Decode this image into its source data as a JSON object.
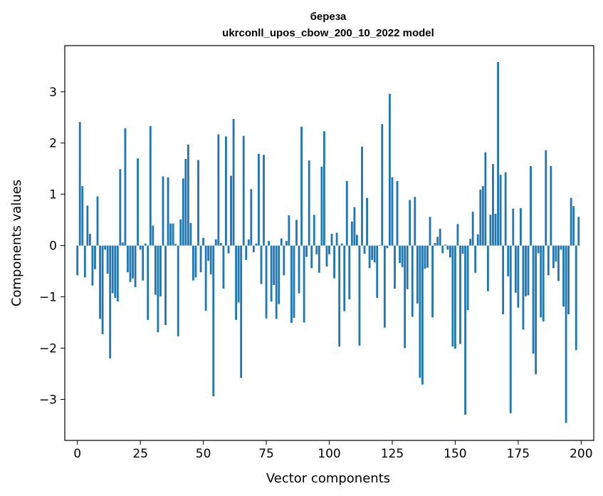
{
  "chart_data": {
    "type": "bar",
    "title": "береза",
    "subtitle": "ukrconll_upos_cbow_200_10_2022 model",
    "xlabel": "Vector components",
    "ylabel": "Components values",
    "xlim": [
      -5,
      205
    ],
    "ylim": [
      -3.8,
      3.9
    ],
    "xticks": [
      0,
      25,
      50,
      75,
      100,
      125,
      150,
      175,
      200
    ],
    "xtick_labels": [
      "0",
      "25",
      "50",
      "75",
      "100",
      "125",
      "150",
      "175",
      "200"
    ],
    "yticks": [
      -3,
      -2,
      -1,
      0,
      1,
      2,
      3
    ],
    "ytick_labels": [
      "−3",
      "−2",
      "−1",
      "0",
      "1",
      "2",
      "3"
    ],
    "bar_color": "#1f77b4",
    "bar_width": 0.8,
    "values": [
      -0.58,
      2.41,
      1.16,
      -0.62,
      0.78,
      0.23,
      -0.78,
      -0.46,
      0.96,
      -1.43,
      -1.73,
      -0.08,
      -0.55,
      -2.2,
      -0.93,
      -1.02,
      -1.09,
      1.49,
      0.06,
      2.29,
      -0.52,
      -0.71,
      -0.64,
      -0.81,
      1.7,
      -0.08,
      -0.68,
      0.04,
      -1.45,
      2.33,
      0.39,
      -0.96,
      -1.69,
      -0.99,
      1.35,
      -1.55,
      1.33,
      0.43,
      0.43,
      0.03,
      -1.77,
      0.51,
      1.31,
      1.69,
      1.97,
      0.44,
      -0.68,
      -0.62,
      1.67,
      -0.52,
      0.15,
      -1.27,
      -0.3,
      -0.56,
      -2.94,
      0.12,
      2.17,
      0.05,
      -0.84,
      2.13,
      -0.15,
      1.36,
      2.47,
      -1.45,
      -1.11,
      -2.58,
      2.14,
      -0.28,
      0.12,
      1.1,
      -0.13,
      0.04,
      1.79,
      -0.75,
      1.77,
      -1.42,
      0.09,
      -1.09,
      -0.77,
      -1.43,
      -1.14,
      0.14,
      -0.58,
      0.09,
      0.59,
      -1.51,
      -1.41,
      0.5,
      -0.93,
      2.32,
      -1.5,
      -0.22,
      1.66,
      -0.44,
      0.6,
      -0.17,
      -0.53,
      1.54,
      2.23,
      -0.41,
      -0.17,
      0.23,
      -0.64,
      0.25,
      -1.97,
      0.04,
      -1.28,
      1.26,
      -1.05,
      0.47,
      0.75,
      0.21,
      -1.95,
      1.93,
      -0.16,
      0.93,
      -0.44,
      -0.28,
      -0.33,
      -1.02,
      0.01,
      2.37,
      -1.6,
      -0.05,
      2.96,
      1.33,
      -0.84,
      1.26,
      -0.34,
      -0.42,
      -2.0,
      -0.85,
      0.89,
      -1.39,
      0.95,
      -1.13,
      -2.58,
      -2.71,
      -0.45,
      -0.43,
      0.56,
      -1.4,
      0.05,
      0.17,
      0.33,
      -0.15,
      0.02,
      -0.08,
      -0.23,
      -1.97,
      -2.01,
      0.42,
      -1.92,
      -0.16,
      -3.3,
      -1.26,
      0.13,
      0.66,
      -0.53,
      0.22,
      1.09,
      1.16,
      1.82,
      -0.89,
      0.6,
      1.59,
      0.62,
      3.58,
      1.38,
      -1.34,
      1.43,
      -0.6,
      -3.27,
      0.72,
      -0.92,
      -1.21,
      0.73,
      -1.64,
      -0.99,
      -0.97,
      1.55,
      -2.11,
      -2.51,
      -0.15,
      -1.4,
      -1.48,
      1.86,
      -0.58,
      1.55,
      -0.44,
      -0.31,
      -0.69,
      -0.08,
      -1.19,
      -3.46,
      -1.34,
      0.93,
      0.77,
      -2.04,
      0.56
    ]
  }
}
